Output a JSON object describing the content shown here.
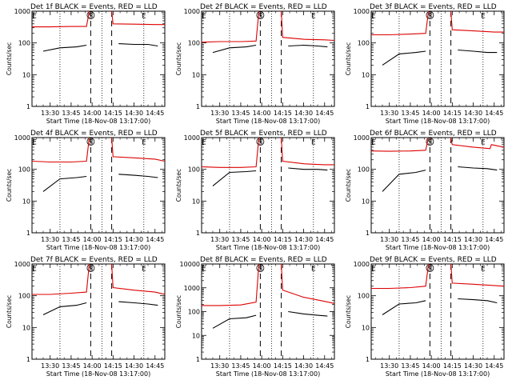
{
  "chart_data": [
    {
      "type": "line",
      "title": "Det 1f BLACK = Events, RED = LLD",
      "xlabel": "Start Time (18-Nov-08 13:17:00)",
      "ylabel": "Counts/sec",
      "x_tick_labels": [
        "13:30",
        "13:45",
        "14:00",
        "14:15",
        "14:30",
        "14:45"
      ],
      "y_tick_labels": [
        "1",
        "10",
        "100",
        "1000"
      ],
      "yscale": "log",
      "ylim": [
        1,
        1000
      ],
      "xlim": [
        "13:17",
        "14:52"
      ],
      "markers": [
        "E",
        "S",
        "E"
      ],
      "gap": [
        "13:59",
        "14:14"
      ],
      "dotted_lines": [
        "13:37",
        "14:07",
        "14:37"
      ],
      "series": [
        {
          "name": "BLACK",
          "color": "#000000",
          "segments": [
            {
              "x": [
                "13:25",
                "13:37",
                "13:49",
                "13:56"
              ],
              "y": [
                55,
                70,
                75,
                85
              ]
            },
            {
              "x": [
                "14:19",
                "14:30",
                "14:40",
                "14:47"
              ],
              "y": [
                95,
                90,
                90,
                80
              ]
            }
          ]
        },
        {
          "name": "RED",
          "color": "#dd0000",
          "segments": [
            {
              "x": [
                "13:17",
                "13:30",
                "13:45",
                "13:56",
                "13:58"
              ],
              "y": [
                320,
                320,
                330,
                330,
                1000
              ]
            },
            {
              "x": [
                "14:14",
                "14:15",
                "14:30",
                "14:45",
                "14:52"
              ],
              "y": [
                1000,
                400,
                390,
                380,
                380
              ]
            }
          ]
        }
      ]
    },
    {
      "type": "line",
      "title": "Det 2f BLACK = Events, RED = LLD",
      "xlabel": "Start Time (18-Nov-08 13:17:00)",
      "ylabel": "Counts/sec",
      "x_tick_labels": [
        "13:30",
        "13:45",
        "14:00",
        "14:15",
        "14:30",
        "14:45"
      ],
      "y_tick_labels": [
        "1",
        "10",
        "100",
        "1000"
      ],
      "yscale": "log",
      "ylim": [
        1,
        1000
      ],
      "xlim": [
        "13:17",
        "14:52"
      ],
      "markers": [
        "E",
        "S",
        "E"
      ],
      "gap": [
        "13:59",
        "14:14"
      ],
      "dotted_lines": [
        "13:37",
        "14:07",
        "14:37"
      ],
      "series": [
        {
          "name": "BLACK",
          "color": "#000000",
          "segments": [
            {
              "x": [
                "13:25",
                "13:37",
                "13:49",
                "13:56"
              ],
              "y": [
                50,
                70,
                75,
                85
              ]
            },
            {
              "x": [
                "14:19",
                "14:30",
                "14:40",
                "14:47"
              ],
              "y": [
                80,
                85,
                80,
                75
              ]
            }
          ]
        },
        {
          "name": "RED",
          "color": "#dd0000",
          "segments": [
            {
              "x": [
                "13:17",
                "13:30",
                "13:45",
                "13:56",
                "13:58"
              ],
              "y": [
                105,
                110,
                110,
                115,
                1000
              ]
            },
            {
              "x": [
                "14:14",
                "14:15",
                "14:30",
                "14:45",
                "14:52"
              ],
              "y": [
                1000,
                150,
                130,
                125,
                120
              ]
            }
          ]
        }
      ]
    },
    {
      "type": "line",
      "title": "Det 3f BLACK = Events, RED = LLD",
      "xlabel": "Start Time (18-Nov-08 13:17:00)",
      "ylabel": "Counts/sec",
      "x_tick_labels": [
        "13:30",
        "13:45",
        "14:00",
        "14:15",
        "14:30",
        "14:45"
      ],
      "y_tick_labels": [
        "1",
        "10",
        "100",
        "1000"
      ],
      "yscale": "log",
      "ylim": [
        1,
        1000
      ],
      "xlim": [
        "13:17",
        "14:52"
      ],
      "markers": [
        "E",
        "S",
        "E"
      ],
      "gap": [
        "13:59",
        "14:14"
      ],
      "dotted_lines": [
        "13:37",
        "14:07",
        "14:37"
      ],
      "series": [
        {
          "name": "BLACK",
          "color": "#000000",
          "segments": [
            {
              "x": [
                "13:25",
                "13:37",
                "13:49",
                "13:56"
              ],
              "y": [
                20,
                45,
                50,
                55
              ]
            },
            {
              "x": [
                "14:19",
                "14:30",
                "14:40",
                "14:47"
              ],
              "y": [
                60,
                55,
                50,
                50
              ]
            }
          ]
        },
        {
          "name": "RED",
          "color": "#dd0000",
          "segments": [
            {
              "x": [
                "13:17",
                "13:30",
                "13:45",
                "13:56",
                "13:58"
              ],
              "y": [
                180,
                180,
                190,
                200,
                1000
              ]
            },
            {
              "x": [
                "14:14",
                "14:15",
                "14:30",
                "14:45",
                "14:52"
              ],
              "y": [
                1000,
                260,
                240,
                220,
                220
              ]
            }
          ]
        }
      ]
    },
    {
      "type": "line",
      "title": "Det 4f BLACK = Events, RED = LLD",
      "xlabel": "Start Time (18-Nov-08 13:17:00)",
      "ylabel": "Counts/sec",
      "x_tick_labels": [
        "13:30",
        "13:45",
        "14:00",
        "14:15",
        "14:30",
        "14:45"
      ],
      "y_tick_labels": [
        "1",
        "10",
        "100",
        "1000"
      ],
      "yscale": "log",
      "ylim": [
        1,
        1000
      ],
      "xlim": [
        "13:17",
        "14:52"
      ],
      "markers": [
        "E",
        "S",
        "E"
      ],
      "gap": [
        "13:59",
        "14:14"
      ],
      "dotted_lines": [
        "13:37",
        "14:07",
        "14:37"
      ],
      "series": [
        {
          "name": "BLACK",
          "color": "#000000",
          "segments": [
            {
              "x": [
                "13:25",
                "13:37",
                "13:49",
                "13:56"
              ],
              "y": [
                20,
                50,
                55,
                60
              ]
            },
            {
              "x": [
                "14:19",
                "14:30",
                "14:40",
                "14:47"
              ],
              "y": [
                70,
                65,
                60,
                55
              ]
            }
          ]
        },
        {
          "name": "RED",
          "color": "#dd0000",
          "segments": [
            {
              "x": [
                "13:17",
                "13:30",
                "13:45",
                "13:56",
                "13:58"
              ],
              "y": [
                180,
                170,
                170,
                180,
                1000
              ]
            },
            {
              "x": [
                "14:14",
                "14:15",
                "14:30",
                "14:45",
                "14:52"
              ],
              "y": [
                1000,
                250,
                230,
                210,
                180
              ]
            }
          ]
        }
      ]
    },
    {
      "type": "line",
      "title": "Det 5f BLACK = Events, RED = LLD",
      "xlabel": "Start Time (18-Nov-08 13:17:00)",
      "ylabel": "Counts/sec",
      "x_tick_labels": [
        "13:30",
        "13:45",
        "14:00",
        "14:15",
        "14:30",
        "14:45"
      ],
      "y_tick_labels": [
        "1",
        "10",
        "100",
        "1000"
      ],
      "yscale": "log",
      "ylim": [
        1,
        1000
      ],
      "xlim": [
        "13:17",
        "14:52"
      ],
      "markers": [
        "E",
        "S",
        "E"
      ],
      "gap": [
        "13:59",
        "14:14"
      ],
      "dotted_lines": [
        "13:37",
        "14:07",
        "14:37"
      ],
      "series": [
        {
          "name": "BLACK",
          "color": "#000000",
          "segments": [
            {
              "x": [
                "13:25",
                "13:37",
                "13:49",
                "13:56"
              ],
              "y": [
                30,
                80,
                85,
                90
              ]
            },
            {
              "x": [
                "14:19",
                "14:30",
                "14:40",
                "14:47"
              ],
              "y": [
                110,
                100,
                100,
                95
              ]
            }
          ]
        },
        {
          "name": "RED",
          "color": "#dd0000",
          "segments": [
            {
              "x": [
                "13:17",
                "13:30",
                "13:45",
                "13:56",
                "13:58"
              ],
              "y": [
                120,
                115,
                115,
                120,
                1000
              ]
            },
            {
              "x": [
                "14:14",
                "14:15",
                "14:30",
                "14:45",
                "14:52"
              ],
              "y": [
                1000,
                180,
                150,
                140,
                140
              ]
            }
          ]
        }
      ]
    },
    {
      "type": "line",
      "title": "Det 6f BLACK = Events, RED = LLD",
      "xlabel": "Start Time (18-Nov-08 13:17:00)",
      "ylabel": "Counts/sec",
      "x_tick_labels": [
        "13:30",
        "13:45",
        "14:00",
        "14:15",
        "14:30",
        "14:45"
      ],
      "y_tick_labels": [
        "1",
        "10",
        "100",
        "1000"
      ],
      "yscale": "log",
      "ylim": [
        1,
        1000
      ],
      "xlim": [
        "13:17",
        "14:52"
      ],
      "markers": [
        "E",
        "S",
        "E"
      ],
      "gap": [
        "13:59",
        "14:14"
      ],
      "dotted_lines": [
        "13:37",
        "14:07",
        "14:37"
      ],
      "series": [
        {
          "name": "BLACK",
          "color": "#000000",
          "segments": [
            {
              "x": [
                "13:25",
                "13:37",
                "13:49",
                "13:56"
              ],
              "y": [
                20,
                70,
                80,
                95
              ]
            },
            {
              "x": [
                "14:19",
                "14:30",
                "14:40",
                "14:47"
              ],
              "y": [
                120,
                110,
                105,
                95
              ]
            }
          ]
        },
        {
          "name": "RED",
          "color": "#dd0000",
          "segments": [
            {
              "x": [
                "13:17",
                "13:30",
                "13:45",
                "13:56",
                "13:58"
              ],
              "y": [
                380,
                370,
                380,
                400,
                1000
              ]
            },
            {
              "x": [
                "14:14",
                "14:15",
                "14:30",
                "14:42",
                "14:43",
                "14:52"
              ],
              "y": [
                1000,
                600,
                500,
                450,
                600,
                500
              ]
            }
          ]
        }
      ]
    },
    {
      "type": "line",
      "title": "Det 7f BLACK = Events, RED = LLD",
      "xlabel": "Start Time (18-Nov-08 13:17:00)",
      "ylabel": "Counts/sec",
      "x_tick_labels": [
        "13:30",
        "13:45",
        "14:00",
        "14:15",
        "14:30",
        "14:45"
      ],
      "y_tick_labels": [
        "1",
        "10",
        "100",
        "1000"
      ],
      "yscale": "log",
      "ylim": [
        1,
        1000
      ],
      "xlim": [
        "13:17",
        "14:52"
      ],
      "markers": [
        "E",
        "S",
        "E"
      ],
      "gap": [
        "13:59",
        "14:14"
      ],
      "dotted_lines": [
        "13:37",
        "14:07",
        "14:37"
      ],
      "series": [
        {
          "name": "BLACK",
          "color": "#000000",
          "segments": [
            {
              "x": [
                "13:25",
                "13:37",
                "13:49",
                "13:56"
              ],
              "y": [
                25,
                45,
                50,
                60
              ]
            },
            {
              "x": [
                "14:19",
                "14:30",
                "14:40",
                "14:47"
              ],
              "y": [
                65,
                60,
                55,
                50
              ]
            }
          ]
        },
        {
          "name": "RED",
          "color": "#dd0000",
          "segments": [
            {
              "x": [
                "13:17",
                "13:30",
                "13:45",
                "13:56",
                "13:58"
              ],
              "y": [
                110,
                110,
                120,
                130,
                1000
              ]
            },
            {
              "x": [
                "14:14",
                "14:15",
                "14:30",
                "14:45",
                "14:52"
              ],
              "y": [
                1000,
                180,
                150,
                130,
                110
              ]
            }
          ]
        }
      ]
    },
    {
      "type": "line",
      "title": "Det 8f BLACK = Events, RED = LLD",
      "xlabel": "Start Time (18-Nov-08 13:17:00)",
      "ylabel": "Counts/sec",
      "x_tick_labels": [
        "13:30",
        "13:45",
        "14:00",
        "14:15",
        "14:30",
        "14:45"
      ],
      "y_tick_labels": [
        "1",
        "10",
        "100",
        "1000",
        "10000"
      ],
      "yscale": "log",
      "ylim": [
        1,
        10000
      ],
      "xlim": [
        "13:17",
        "14:52"
      ],
      "markers": [
        "E",
        "S",
        "E"
      ],
      "gap": [
        "13:59",
        "14:14"
      ],
      "dotted_lines": [
        "13:37",
        "14:07",
        "14:37"
      ],
      "series": [
        {
          "name": "BLACK",
          "color": "#000000",
          "segments": [
            {
              "x": [
                "13:25",
                "13:37",
                "13:49",
                "13:56"
              ],
              "y": [
                20,
                50,
                55,
                70
              ]
            },
            {
              "x": [
                "14:19",
                "14:30",
                "14:40",
                "14:47"
              ],
              "y": [
                100,
                80,
                70,
                65
              ]
            }
          ]
        },
        {
          "name": "RED",
          "color": "#dd0000",
          "segments": [
            {
              "x": [
                "13:17",
                "13:30",
                "13:45",
                "13:56",
                "13:58"
              ],
              "y": [
                180,
                180,
                190,
                250,
                10000
              ]
            },
            {
              "x": [
                "14:14",
                "14:15",
                "14:30",
                "14:45",
                "14:52"
              ],
              "y": [
                10000,
                800,
                400,
                270,
                220
              ]
            }
          ]
        }
      ]
    },
    {
      "type": "line",
      "title": "Det 9f BLACK = Events, RED = LLD",
      "xlabel": "Start Time (18-Nov-08 13:17:00)",
      "ylabel": "Counts/sec",
      "x_tick_labels": [
        "13:30",
        "13:45",
        "14:00",
        "14:15",
        "14:30",
        "14:45"
      ],
      "y_tick_labels": [
        "1",
        "10",
        "100",
        "1000"
      ],
      "yscale": "log",
      "ylim": [
        1,
        1000
      ],
      "xlim": [
        "13:17",
        "14:52"
      ],
      "markers": [
        "E",
        "S",
        "E"
      ],
      "gap": [
        "13:59",
        "14:14"
      ],
      "dotted_lines": [
        "13:37",
        "14:07",
        "14:37"
      ],
      "series": [
        {
          "name": "BLACK",
          "color": "#000000",
          "segments": [
            {
              "x": [
                "13:25",
                "13:37",
                "13:49",
                "13:56"
              ],
              "y": [
                25,
                55,
                60,
                70
              ]
            },
            {
              "x": [
                "14:19",
                "14:30",
                "14:40",
                "14:47"
              ],
              "y": [
                80,
                75,
                70,
                60
              ]
            }
          ]
        },
        {
          "name": "RED",
          "color": "#dd0000",
          "segments": [
            {
              "x": [
                "13:17",
                "13:30",
                "13:45",
                "13:56",
                "13:58"
              ],
              "y": [
                170,
                170,
                180,
                200,
                1000
              ]
            },
            {
              "x": [
                "14:14",
                "14:15",
                "14:30",
                "14:45",
                "14:52"
              ],
              "y": [
                1000,
                250,
                230,
                210,
                200
              ]
            }
          ]
        }
      ]
    }
  ]
}
